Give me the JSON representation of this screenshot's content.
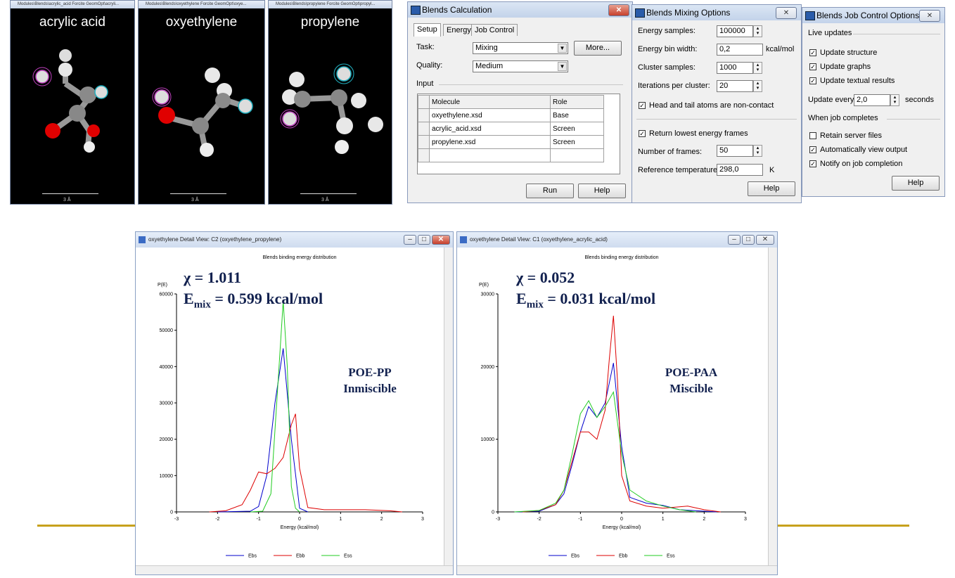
{
  "molecules": [
    {
      "label": "acrylic acid",
      "title": "Modules\\Blends\\acrylic_acid Forcite GeomOpt\\acryli...",
      "scale": "3 Å"
    },
    {
      "label": "oxyethylene",
      "title": "Modules\\Blends\\oxyethylene Forcite GeomOpt\\oxye...",
      "scale": "3 Å"
    },
    {
      "label": "propylene",
      "title": "Modules\\Blends\\propylene Forcite GeomOpt\\propyl...",
      "scale": "3 Å"
    }
  ],
  "calc": {
    "title": "Blends Calculation",
    "tabs": [
      "Setup",
      "Energy",
      "Job Control"
    ],
    "task_label": "Task:",
    "task_value": "Mixing",
    "more_label": "More...",
    "quality_label": "Quality:",
    "quality_value": "Medium",
    "input_label": "Input",
    "col_molecule": "Molecule",
    "col_role": "Role",
    "rows": [
      {
        "molecule": "oxyethylene.xsd",
        "role": "Base"
      },
      {
        "molecule": "acrylic_acid.xsd",
        "role": "Screen"
      },
      {
        "molecule": "propylene.xsd",
        "role": "Screen"
      }
    ],
    "run_label": "Run",
    "help_label": "Help"
  },
  "mixing": {
    "title": "Blends Mixing Options",
    "energy_samples_label": "Energy samples:",
    "energy_samples": "100000",
    "bin_width_label": "Energy bin width:",
    "bin_width": "0,2",
    "bin_unit": "kcal/mol",
    "cluster_label": "Cluster samples:",
    "cluster": "1000",
    "iter_label": "Iterations per cluster:",
    "iter": "20",
    "head_tail_label": "Head and tail atoms are non-contact",
    "return_label": "Return lowest energy frames",
    "frames_label": "Number of frames:",
    "frames": "50",
    "ref_temp_label": "Reference temperature:",
    "ref_temp": "298,0",
    "temp_unit": "K",
    "help_label": "Help"
  },
  "jobctl": {
    "title": "Blends Job Control Options",
    "live_label": "Live updates",
    "upd_structure": "Update structure",
    "upd_graphs": "Update graphs",
    "upd_text": "Update textual results",
    "update_every_label": "Update every",
    "update_every": "2,0",
    "seconds_label": "seconds",
    "completes_label": "When job completes",
    "retain_label": "Retain server files",
    "auto_view_label": "Automatically view output",
    "notify_label": "Notify on job completion",
    "help_label": "Help"
  },
  "graph1": {
    "title": "oxyethylene Detail View: C2 (oxyethylene_propylene)",
    "chi": "χ = 1.011",
    "emix_prefix": "E",
    "emix_sub": "mix",
    "emix_rest": " = 0.599 kcal/mol",
    "annot_line1": "POE-PP",
    "annot_line2": "Inmiscible"
  },
  "graph2": {
    "title": "oxyethylene Detail View: C1 (oxyethylene_acrylic_acid)",
    "chi": "χ = 0.052",
    "emix_prefix": "E",
    "emix_sub": "mix",
    "emix_rest": " = 0.031 kcal/mol",
    "annot_line1": "POE-PAA",
    "annot_line2": "Miscible"
  },
  "chart_data": [
    {
      "type": "line",
      "title": "Blends binding energy distribution",
      "xlabel": "Energy (kcal/mol)",
      "ylabel": "P(E)",
      "xlim": [
        -3,
        3
      ],
      "ylim": [
        0,
        60000
      ],
      "xticks": [
        -3,
        -2,
        -1,
        0,
        1,
        2,
        3
      ],
      "yticks": [
        0,
        10000,
        20000,
        30000,
        40000,
        50000,
        60000
      ],
      "legend_position": "bottom",
      "series": [
        {
          "name": "Ebs",
          "color": "#0000cc",
          "x": [
            -2,
            -1.2,
            -1,
            -0.8,
            -0.6,
            -0.4,
            -0.2,
            0,
            0.2
          ],
          "y": [
            0,
            200,
            1500,
            10000,
            30000,
            45000,
            20000,
            1000,
            0
          ]
        },
        {
          "name": "Ebb",
          "color": "#dd0000",
          "x": [
            -2.2,
            -1.8,
            -1.4,
            -1.2,
            -1,
            -0.8,
            -0.6,
            -0.4,
            -0.2,
            -0.1,
            0,
            0.2,
            0.6,
            1,
            1.6,
            2.2,
            2.5
          ],
          "y": [
            0,
            300,
            2000,
            6000,
            11000,
            10500,
            12000,
            15000,
            24000,
            27000,
            12000,
            1200,
            600,
            600,
            600,
            300,
            0
          ]
        },
        {
          "name": "Ess",
          "color": "#22cc22",
          "x": [
            -1.2,
            -0.9,
            -0.7,
            -0.5,
            -0.4,
            -0.3,
            -0.2,
            -0.1,
            0
          ],
          "y": [
            0,
            200,
            5000,
            40000,
            58000,
            40000,
            7000,
            1000,
            0
          ]
        }
      ]
    },
    {
      "type": "line",
      "title": "Blends binding energy distribution",
      "xlabel": "Energy (kcal/mol)",
      "ylabel": "P(E)",
      "xlim": [
        -3,
        3
      ],
      "ylim": [
        0,
        30000
      ],
      "xticks": [
        -3,
        -2,
        -1,
        0,
        1,
        2,
        3
      ],
      "yticks": [
        0,
        10000,
        20000,
        30000
      ],
      "legend_position": "bottom",
      "series": [
        {
          "name": "Ebs",
          "color": "#0000cc",
          "x": [
            -2.6,
            -2,
            -1.6,
            -1.4,
            -1.2,
            -1,
            -0.8,
            -0.6,
            -0.4,
            -0.2,
            0,
            0.2,
            0.6,
            1,
            1.4,
            2,
            2.3
          ],
          "y": [
            0,
            100,
            1000,
            2500,
            6500,
            11000,
            14500,
            13000,
            15000,
            20500,
            9000,
            2000,
            1200,
            900,
            300,
            100,
            0
          ]
        },
        {
          "name": "Ebb",
          "color": "#dd0000",
          "x": [
            -2.4,
            -2,
            -1.6,
            -1.4,
            -1.2,
            -1,
            -0.8,
            -0.6,
            -0.4,
            -0.3,
            -0.2,
            -0.1,
            0,
            0.2,
            0.6,
            1,
            1.6,
            2,
            2.4
          ],
          "y": [
            0,
            200,
            1000,
            3000,
            7000,
            11000,
            11000,
            10000,
            14000,
            21000,
            27000,
            18000,
            5000,
            1500,
            800,
            500,
            800,
            300,
            0
          ]
        },
        {
          "name": "Ess",
          "color": "#22cc22",
          "x": [
            -2.6,
            -2,
            -1.6,
            -1.4,
            -1.2,
            -1,
            -0.8,
            -0.6,
            -0.4,
            -0.2,
            0,
            0.2,
            0.6,
            1,
            1.4,
            1.8
          ],
          "y": [
            0,
            200,
            1200,
            3000,
            8000,
            13500,
            15300,
            13000,
            14500,
            16500,
            8000,
            3000,
            1500,
            800,
            300,
            0
          ]
        }
      ]
    }
  ]
}
